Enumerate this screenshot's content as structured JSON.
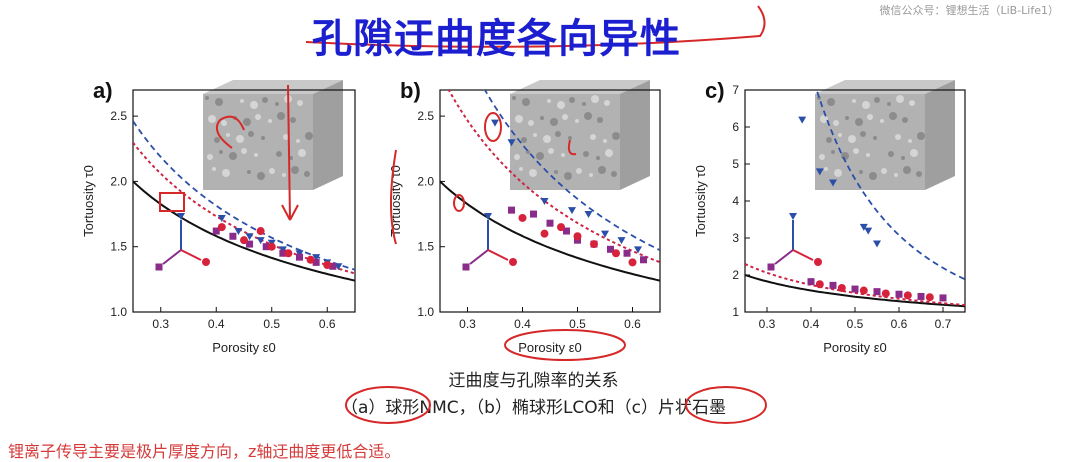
{
  "slide": {
    "title": "孔隙迂曲度各向异性",
    "watermark": "微信公众号：锂想生活（LiB-Life1）",
    "caption_line1": "迂曲度与孔隙率的关系",
    "caption_line2": "（a）球形NMC，（b）椭球形LCO和（c）片状石墨",
    "bottom_note": "锂离子传导主要是极片厚度方向，z轴迂曲度更低合适。"
  },
  "colors": {
    "title": "#1c1fcf",
    "annotation_red": "#d62828",
    "bruggeman_black": "#111111",
    "z_dir_blue": "#2b4fa8",
    "x_dir_purple": "#8a2c8a",
    "y_dir_red": "#d6223b",
    "note_red": "#d63b3b"
  },
  "chart_data": [
    {
      "panel": "a)",
      "type": "scatter",
      "xlabel": "Porosity ε0",
      "ylabel": "Tortuosity τ0",
      "xlim": [
        0.25,
        0.65
      ],
      "ylim": [
        1.0,
        2.7
      ],
      "xticks": [
        0.3,
        0.4,
        0.5,
        0.6
      ],
      "yticks": [
        1.0,
        1.5,
        2.0,
        2.5
      ],
      "grid": false,
      "bruggeman_alpha": 0.5,
      "series": [
        {
          "direction": "z",
          "marker": "triangle",
          "fit_alpha": 0.65,
          "x": [
            0.41,
            0.44,
            0.46,
            0.48,
            0.5,
            0.52,
            0.55,
            0.58,
            0.6,
            0.62
          ],
          "y": [
            1.72,
            1.62,
            1.58,
            1.55,
            1.53,
            1.48,
            1.45,
            1.42,
            1.38,
            1.35
          ]
        },
        {
          "direction": "x",
          "marker": "square",
          "fit_alpha": 0.6,
          "x": [
            0.4,
            0.43,
            0.46,
            0.49,
            0.52,
            0.55,
            0.58,
            0.61
          ],
          "y": [
            1.62,
            1.58,
            1.52,
            1.5,
            1.45,
            1.42,
            1.38,
            1.35
          ]
        },
        {
          "direction": "y",
          "marker": "circle",
          "fit_alpha": 0.6,
          "x": [
            0.41,
            0.45,
            0.48,
            0.5,
            0.53,
            0.57,
            0.6
          ],
          "y": [
            1.65,
            1.55,
            1.62,
            1.5,
            1.45,
            1.4,
            1.36
          ]
        }
      ]
    },
    {
      "panel": "b)",
      "type": "scatter",
      "xlabel": "Porosity ε0",
      "ylabel": "Tortuosity τ0",
      "xlim": [
        0.25,
        0.65
      ],
      "ylim": [
        1.0,
        2.7
      ],
      "xticks": [
        0.3,
        0.4,
        0.5,
        0.6
      ],
      "yticks": [
        1.0,
        1.5,
        2.0,
        2.5
      ],
      "grid": false,
      "bruggeman_alpha": 0.5,
      "series": [
        {
          "direction": "z",
          "marker": "triangle",
          "fit_alpha": 0.9,
          "x": [
            0.35,
            0.38,
            0.44,
            0.49,
            0.52,
            0.55,
            0.58,
            0.61
          ],
          "y": [
            2.45,
            2.3,
            1.85,
            1.78,
            1.75,
            1.6,
            1.55,
            1.48
          ]
        },
        {
          "direction": "x",
          "marker": "square",
          "fit_alpha": 0.75,
          "x": [
            0.38,
            0.42,
            0.45,
            0.48,
            0.5,
            0.53,
            0.56,
            0.59,
            0.62
          ],
          "y": [
            1.78,
            1.75,
            1.68,
            1.62,
            1.55,
            1.52,
            1.48,
            1.45,
            1.4
          ]
        },
        {
          "direction": "y",
          "marker": "circle",
          "fit_alpha": 0.75,
          "x": [
            0.4,
            0.44,
            0.47,
            0.5,
            0.53,
            0.57,
            0.6
          ],
          "y": [
            1.72,
            1.6,
            1.65,
            1.58,
            1.52,
            1.45,
            1.38
          ]
        }
      ]
    },
    {
      "panel": "c)",
      "type": "scatter",
      "xlabel": "Porosity ε0",
      "ylabel": "Tortuosity τ0",
      "xlim": [
        0.25,
        0.75
      ],
      "ylim": [
        1,
        7
      ],
      "xticks": [
        0.3,
        0.4,
        0.5,
        0.6,
        0.7
      ],
      "yticks": [
        1,
        2,
        3,
        4,
        5,
        6,
        7
      ],
      "grid": false,
      "bruggeman_alpha": 0.5,
      "series": [
        {
          "direction": "z",
          "marker": "triangle",
          "fit_alpha": 2.2,
          "x": [
            0.38,
            0.42,
            0.45,
            0.52,
            0.53,
            0.55
          ],
          "y": [
            6.2,
            4.8,
            4.5,
            3.3,
            3.2,
            2.85
          ]
        },
        {
          "direction": "x",
          "marker": "square",
          "fit_alpha": 0.6,
          "x": [
            0.4,
            0.45,
            0.5,
            0.55,
            0.6,
            0.65,
            0.7
          ],
          "y": [
            1.82,
            1.72,
            1.62,
            1.55,
            1.48,
            1.42,
            1.38
          ]
        },
        {
          "direction": "y",
          "marker": "circle",
          "fit_alpha": 0.6,
          "x": [
            0.42,
            0.47,
            0.52,
            0.57,
            0.62,
            0.67
          ],
          "y": [
            1.75,
            1.65,
            1.58,
            1.5,
            1.45,
            1.4
          ]
        }
      ]
    }
  ]
}
